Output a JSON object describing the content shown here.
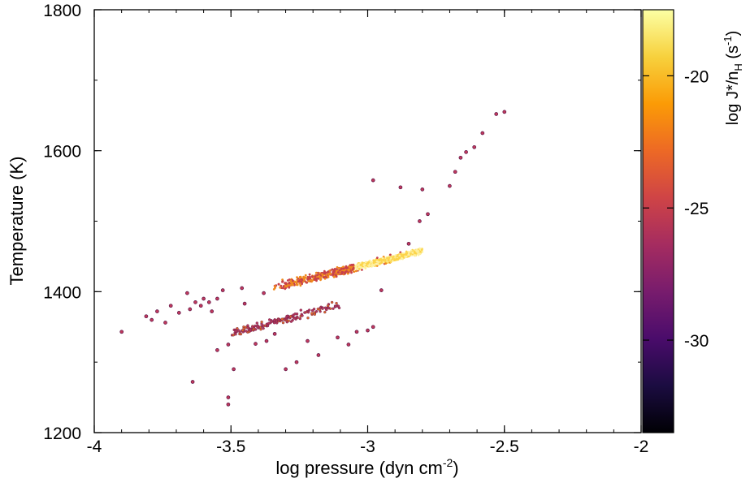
{
  "chart_data": {
    "type": "heatmap",
    "title": "",
    "xlabel": "log pressure (dyn cm",
    "xlabel_sup": "-2",
    "xlabel_end": ")",
    "ylabel": "Temperature (K)",
    "xlim": [
      -4,
      -2
    ],
    "ylim": [
      1200,
      1800
    ],
    "xticks": [
      -4,
      -3.5,
      -3,
      -2.5,
      -2
    ],
    "xtick_labels": [
      "-4",
      "-3.5",
      "-3",
      "-2.5",
      "-2"
    ],
    "yticks": [
      1200,
      1400,
      1600,
      1800
    ],
    "ytick_labels": [
      "1200",
      "1400",
      "1600",
      "1800"
    ],
    "grid": false,
    "colorbar": {
      "label_main": "log J*/n",
      "label_sub": "H",
      "label_mid": " (s",
      "label_sup": "-1",
      "label_end": ")",
      "range": [
        -33.5,
        -17.5
      ],
      "ticks": [
        -20,
        -25,
        -30
      ],
      "tick_labels": [
        "-20",
        "-25",
        "-30"
      ],
      "colormap": "inferno",
      "stops": [
        "#000004",
        "#1b0c41",
        "#4a0c6b",
        "#781c6d",
        "#a52c60",
        "#cf4446",
        "#ed6925",
        "#fb9b06",
        "#f7d13d",
        "#fcffa4"
      ]
    },
    "points": [
      [
        -3.9,
        1343
      ],
      [
        -3.81,
        1365
      ],
      [
        -3.79,
        1360
      ],
      [
        -3.77,
        1372
      ],
      [
        -3.74,
        1356
      ],
      [
        -3.72,
        1380
      ],
      [
        -3.69,
        1370
      ],
      [
        -3.66,
        1398
      ],
      [
        -3.65,
        1375
      ],
      [
        -3.64,
        1272
      ],
      [
        -3.63,
        1385
      ],
      [
        -3.61,
        1380
      ],
      [
        -3.6,
        1390
      ],
      [
        -3.58,
        1385
      ],
      [
        -3.57,
        1372
      ],
      [
        -3.55,
        1390
      ],
      [
        -3.55,
        1317
      ],
      [
        -3.53,
        1402
      ],
      [
        -3.51,
        1325
      ],
      [
        -3.51,
        1240
      ],
      [
        -3.51,
        1250
      ],
      [
        -3.49,
        1290
      ],
      [
        -3.46,
        1405
      ],
      [
        -3.45,
        1383
      ],
      [
        -3.41,
        1326
      ],
      [
        -3.38,
        1398
      ],
      [
        -3.37,
        1330
      ],
      [
        -3.34,
        1340
      ],
      [
        -3.3,
        1290
      ],
      [
        -3.26,
        1300
      ],
      [
        -3.22,
        1330
      ],
      [
        -3.18,
        1310
      ],
      [
        -3.11,
        1335
      ],
      [
        -3.07,
        1325
      ],
      [
        -3.04,
        1343
      ],
      [
        -3.0,
        1345
      ],
      [
        -2.98,
        1350
      ],
      [
        -2.98,
        1558
      ],
      [
        -2.95,
        1402
      ],
      [
        -2.88,
        1548
      ],
      [
        -2.85,
        1468
      ],
      [
        -2.81,
        1500
      ],
      [
        -2.8,
        1545
      ],
      [
        -2.78,
        1510
      ],
      [
        -2.7,
        1550
      ],
      [
        -2.68,
        1570
      ],
      [
        -2.66,
        1590
      ],
      [
        -2.64,
        1598
      ],
      [
        -2.61,
        1605
      ],
      [
        -2.58,
        1625
      ],
      [
        -2.53,
        1652
      ],
      [
        -2.5,
        1655
      ]
    ],
    "main_band": {
      "x_range": [
        -3.35,
        -2.8
      ],
      "y_start": 1405,
      "y_end": 1458,
      "core_x_range": [
        -3.05,
        -2.82
      ]
    },
    "lower_branch": {
      "x_range": [
        -3.5,
        -3.1
      ],
      "y_start": 1340,
      "y_end": 1382
    }
  }
}
